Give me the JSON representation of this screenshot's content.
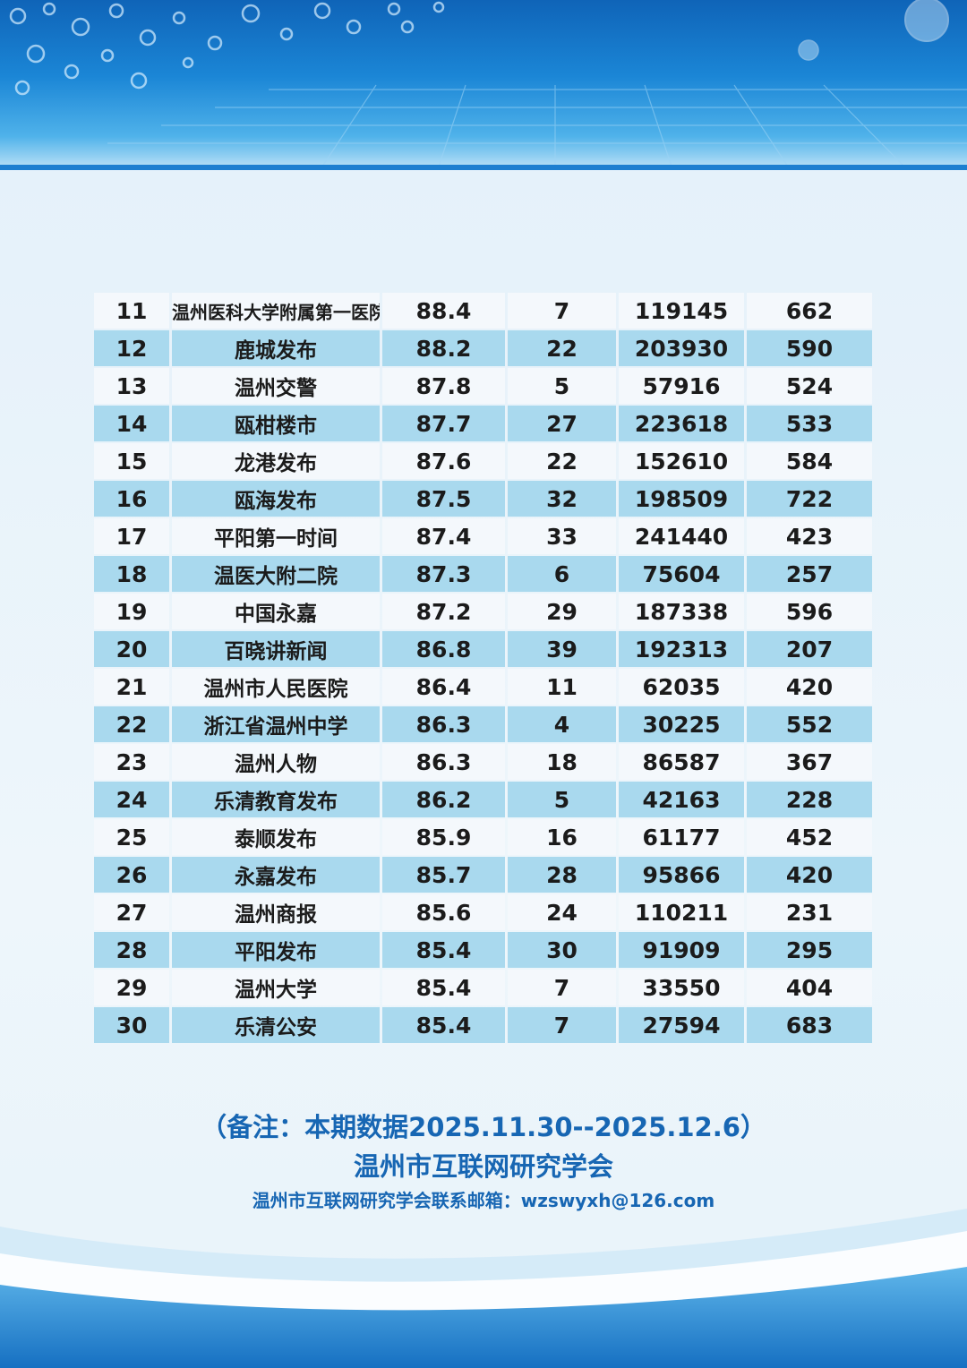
{
  "table": {
    "rows": [
      {
        "rank": "11",
        "name": "温州医科大学附属第一医院",
        "score": "88.4",
        "posts": "7",
        "reads": "119145",
        "likes": "662"
      },
      {
        "rank": "12",
        "name": "鹿城发布",
        "score": "88.2",
        "posts": "22",
        "reads": "203930",
        "likes": "590"
      },
      {
        "rank": "13",
        "name": "温州交警",
        "score": "87.8",
        "posts": "5",
        "reads": "57916",
        "likes": "524"
      },
      {
        "rank": "14",
        "name": "瓯柑楼市",
        "score": "87.7",
        "posts": "27",
        "reads": "223618",
        "likes": "533"
      },
      {
        "rank": "15",
        "name": "龙港发布",
        "score": "87.6",
        "posts": "22",
        "reads": "152610",
        "likes": "584"
      },
      {
        "rank": "16",
        "name": "瓯海发布",
        "score": "87.5",
        "posts": "32",
        "reads": "198509",
        "likes": "722"
      },
      {
        "rank": "17",
        "name": "平阳第一时间",
        "score": "87.4",
        "posts": "33",
        "reads": "241440",
        "likes": "423"
      },
      {
        "rank": "18",
        "name": "温医大附二院",
        "score": "87.3",
        "posts": "6",
        "reads": "75604",
        "likes": "257"
      },
      {
        "rank": "19",
        "name": "中国永嘉",
        "score": "87.2",
        "posts": "29",
        "reads": "187338",
        "likes": "596"
      },
      {
        "rank": "20",
        "name": "百晓讲新闻",
        "score": "86.8",
        "posts": "39",
        "reads": "192313",
        "likes": "207"
      },
      {
        "rank": "21",
        "name": "温州市人民医院",
        "score": "86.4",
        "posts": "11",
        "reads": "62035",
        "likes": "420"
      },
      {
        "rank": "22",
        "name": "浙江省温州中学",
        "score": "86.3",
        "posts": "4",
        "reads": "30225",
        "likes": "552"
      },
      {
        "rank": "23",
        "name": "温州人物",
        "score": "86.3",
        "posts": "18",
        "reads": "86587",
        "likes": "367"
      },
      {
        "rank": "24",
        "name": "乐清教育发布",
        "score": "86.2",
        "posts": "5",
        "reads": "42163",
        "likes": "228"
      },
      {
        "rank": "25",
        "name": "泰顺发布",
        "score": "85.9",
        "posts": "16",
        "reads": "61177",
        "likes": "452"
      },
      {
        "rank": "26",
        "name": "永嘉发布",
        "score": "85.7",
        "posts": "28",
        "reads": "95866",
        "likes": "420"
      },
      {
        "rank": "27",
        "name": "温州商报",
        "score": "85.6",
        "posts": "24",
        "reads": "110211",
        "likes": "231"
      },
      {
        "rank": "28",
        "name": "平阳发布",
        "score": "85.4",
        "posts": "30",
        "reads": "91909",
        "likes": "295"
      },
      {
        "rank": "29",
        "name": "温州大学",
        "score": "85.4",
        "posts": "7",
        "reads": "33550",
        "likes": "404"
      },
      {
        "rank": "30",
        "name": "乐清公安",
        "score": "85.4",
        "posts": "7",
        "reads": "27594",
        "likes": "683"
      }
    ]
  },
  "footer": {
    "note": "（备注：本期数据2025.11.30--2025.12.6）",
    "organization": "温州市互联网研究学会",
    "contact": "温州市互联网研究学会联系邮箱：wzswyxh@126.com"
  },
  "colors": {
    "header_blue": "#1b86d6",
    "row_light": "#f4f8fc",
    "row_blue": "#a9d9ee",
    "footer_text": "#1766b3"
  }
}
